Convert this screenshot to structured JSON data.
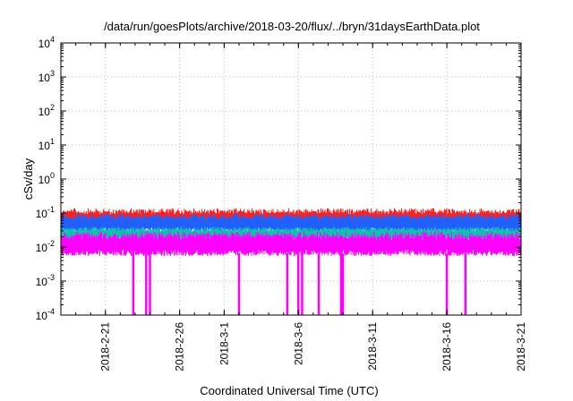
{
  "chart_data": {
    "type": "line",
    "title": "/data/run/goesPlots/archive/2018-03-20/flux/../bryn/31daysEarthData.plot",
    "xlabel": "Coordinated Universal Time (UTC)",
    "ylabel": "cSv/day",
    "x_scale": "time",
    "y_scale": "log",
    "xlim": [
      "2018-02-18",
      "2018-03-21"
    ],
    "ylim": [
      0.0001,
      10000
    ],
    "x_ticks": [
      "2018-2-21",
      "2018-2-26",
      "2018-3-1",
      "2018-3-6",
      "2018-3-11",
      "2018-3-16",
      "2018-3-21"
    ],
    "y_ticks": [
      {
        "value": 0.0001,
        "base": "10",
        "exp": "-4"
      },
      {
        "value": 0.001,
        "base": "10",
        "exp": "-3"
      },
      {
        "value": 0.01,
        "base": "10",
        "exp": "-2"
      },
      {
        "value": 0.1,
        "base": "10",
        "exp": "-1"
      },
      {
        "value": 1,
        "base": "10",
        "exp": "0"
      },
      {
        "value": 10,
        "base": "10",
        "exp": "1"
      },
      {
        "value": 100,
        "base": "10",
        "exp": "2"
      },
      {
        "value": 1000,
        "base": "10",
        "exp": "3"
      },
      {
        "value": 10000,
        "base": "10",
        "exp": "4"
      }
    ],
    "grid": true,
    "series": [
      {
        "color": "#ff2020",
        "band": [
          0.04,
          0.14
        ]
      },
      {
        "color": "#2060ff",
        "band": [
          0.025,
          0.1
        ]
      },
      {
        "color": "#10c0b0",
        "band": [
          0.015,
          0.04
        ]
      },
      {
        "color": "#ff00ff",
        "band": [
          0.005,
          0.03
        ],
        "dropouts": [
          "2018-02-22T21:00",
          "2018-02-23T18:00",
          "2018-02-24T00:00",
          "2018-03-02T00:00",
          "2018-03-05T06:00",
          "2018-03-06T00:00",
          "2018-03-06T06:00",
          "2018-03-07T09:00",
          "2018-03-08T21:00",
          "2018-03-09T00:00",
          "2018-03-16T00:00",
          "2018-03-17T06:00"
        ]
      }
    ]
  }
}
